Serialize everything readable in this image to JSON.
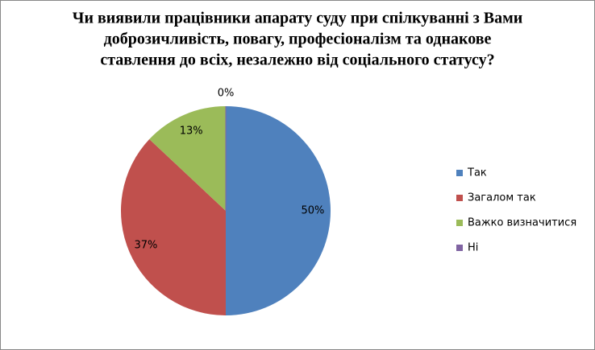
{
  "chart_data": {
    "type": "pie",
    "title": [
      "Чи виявили працівники апарату суду при спілкуванні з Вами",
      "доброзичливість, повагу, професіоналізм та однакове",
      "ставлення до всіх, незалежно від соціального статусу?"
    ],
    "categories": [
      "Так",
      "Загалом так",
      "Важко визначитися",
      "Ні"
    ],
    "values": [
      50,
      37,
      13,
      0
    ],
    "value_labels": [
      "50%",
      "37%",
      "13%",
      "0%"
    ],
    "colors": [
      "#4f81bd",
      "#c0504d",
      "#9bbb59",
      "#8064a2"
    ],
    "legend": "right"
  }
}
